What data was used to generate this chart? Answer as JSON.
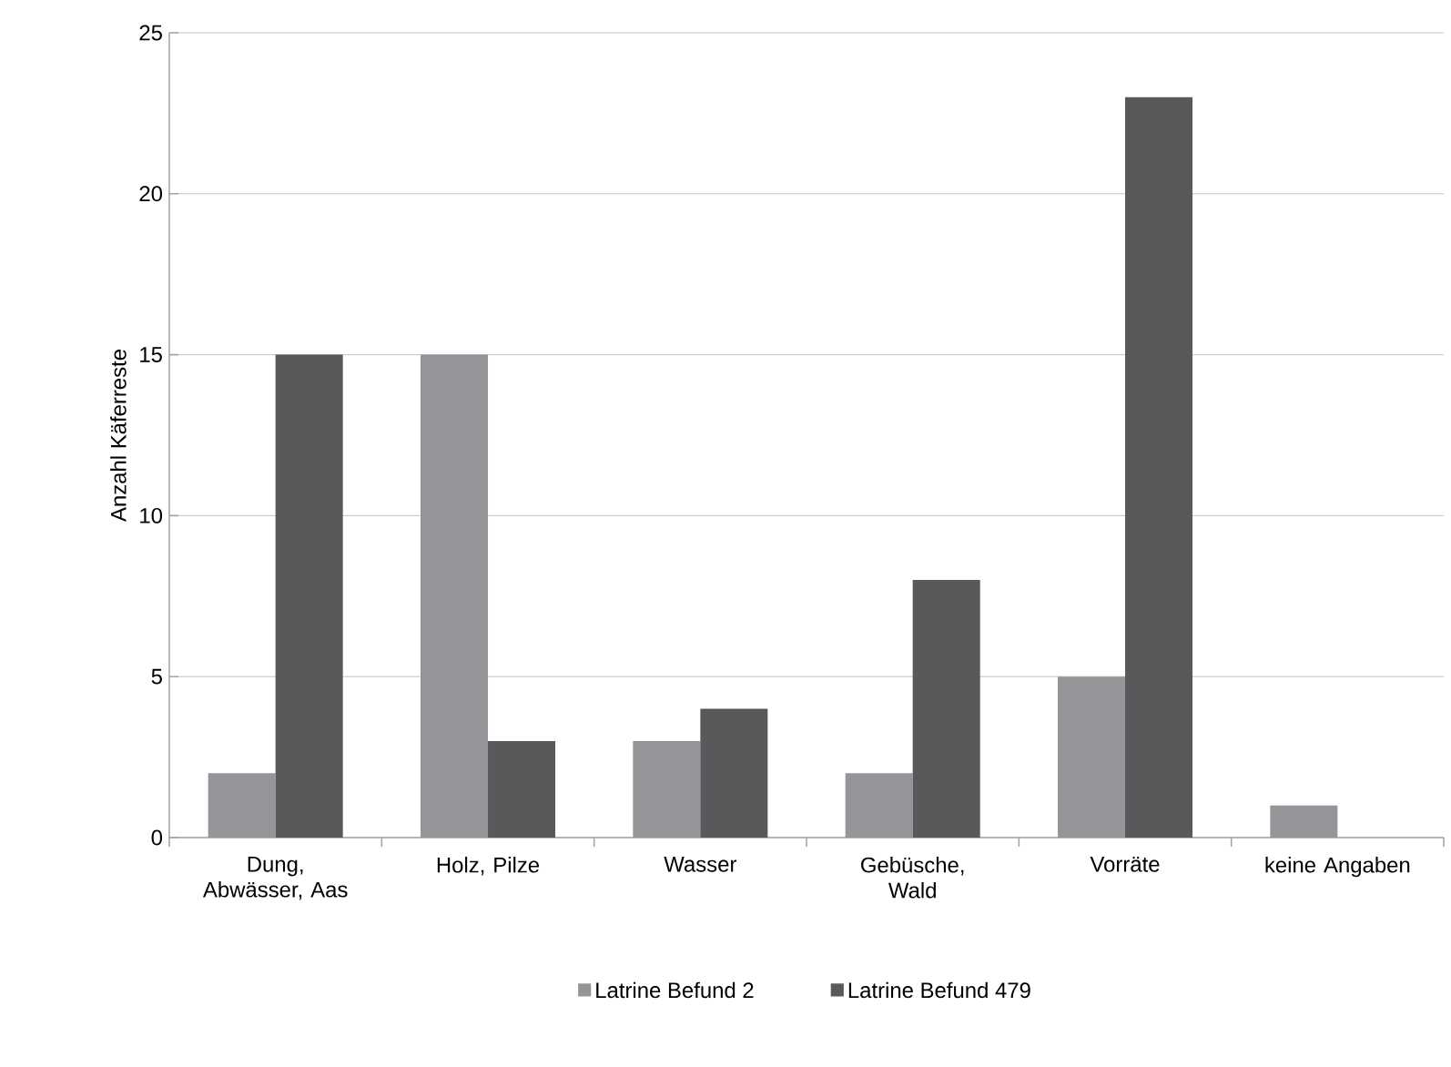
{
  "chart_data": {
    "type": "bar",
    "ylabel": "Anzahl Käferreste",
    "categories": [
      "Dung, Abwässer, Aas",
      "Holz, Pilze",
      "Wasser",
      "Gebüsche, Wald",
      "Vorräte",
      "keine Angaben"
    ],
    "series": [
      {
        "name": "Latrine Befund 2",
        "color": "#939598",
        "values": [
          2,
          15,
          3,
          2,
          5,
          1
        ]
      },
      {
        "name": "Latrine Befund 479",
        "color": "#58595b",
        "values": [
          15,
          3,
          4,
          8,
          23,
          null
        ]
      }
    ],
    "ylim": [
      0,
      25
    ],
    "yticks": [
      0,
      5,
      10,
      15,
      20,
      25
    ],
    "grid": "y",
    "legend": "bottom"
  }
}
